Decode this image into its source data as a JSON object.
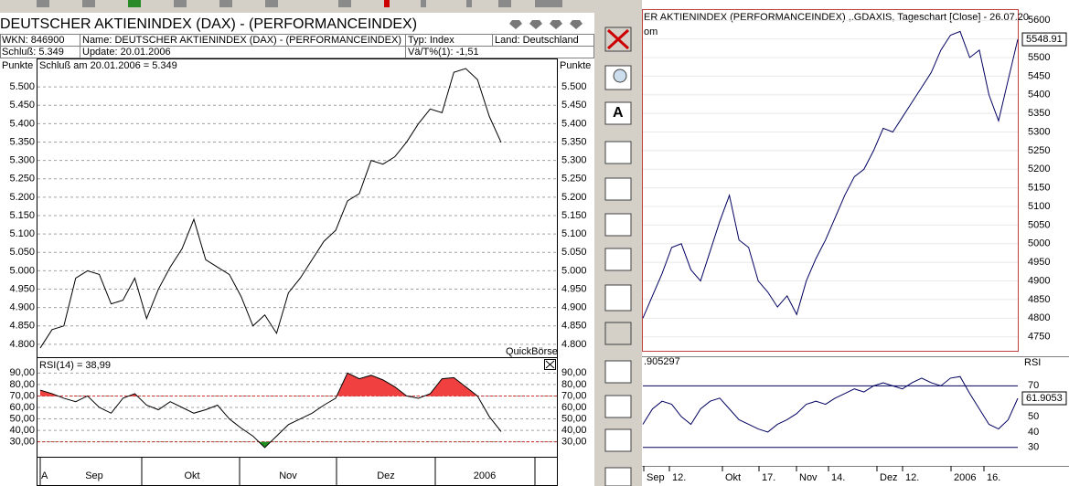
{
  "header": {
    "title": "DEUTSCHER AKTIENINDEX (DAX) - (PERFORMANCEINDEX)",
    "wkn": "WKN: 846900",
    "name": "Name: DEUTSCHER AKTIENINDEX (DAX) - (PERFORMANCEINDEX)",
    "typ": "Typ: Index",
    "land": "Land: Deutschland",
    "schluss": "Schluß: 5.349",
    "update": "Update: 20.01.2006",
    "change": "Vä/T%(1): -1,51"
  },
  "left_chart": {
    "type": "line",
    "axis_label": "Punkte",
    "caption": "Schluß am 20.01.2006 = 5.349",
    "brand": "QuickBörse",
    "color": "#000000",
    "ylim": [
      4765,
      5575
    ],
    "yticks": [
      {
        "value": 4800,
        "label": "4.800"
      },
      {
        "value": 4850,
        "label": "4.850"
      },
      {
        "value": 4900,
        "label": "4.900"
      },
      {
        "value": 4950,
        "label": "4.950"
      },
      {
        "value": 5000,
        "label": "5.000"
      },
      {
        "value": 5050,
        "label": "5.050"
      },
      {
        "value": 5100,
        "label": "5.100"
      },
      {
        "value": 5150,
        "label": "5.150"
      },
      {
        "value": 5200,
        "label": "5.200"
      },
      {
        "value": 5250,
        "label": "5.250"
      },
      {
        "value": 5300,
        "label": "5.300"
      },
      {
        "value": 5350,
        "label": "5.350"
      },
      {
        "value": 5400,
        "label": "5.400"
      },
      {
        "value": 5450,
        "label": "5.450"
      },
      {
        "value": 5500,
        "label": "5.500"
      }
    ],
    "values": [
      4790,
      4840,
      4850,
      4980,
      5000,
      4990,
      4910,
      4920,
      4980,
      4870,
      4950,
      5010,
      5060,
      5140,
      5030,
      5010,
      4990,
      4930,
      4850,
      4880,
      4830,
      4940,
      4980,
      5030,
      5080,
      5110,
      5190,
      5210,
      5300,
      5290,
      5310,
      5350,
      5400,
      5440,
      5430,
      5540,
      5550,
      5520,
      5420,
      5349
    ]
  },
  "left_rsi": {
    "type": "line",
    "caption": "RSI(14) = 38,99",
    "color": "#000000",
    "overbought": 70,
    "oversold": 30,
    "ylim": [
      17,
      103
    ],
    "yticks": [
      {
        "value": 30,
        "label": "30,00"
      },
      {
        "value": 40,
        "label": "40,00"
      },
      {
        "value": 50,
        "label": "50,00"
      },
      {
        "value": 60,
        "label": "60,00"
      },
      {
        "value": 70,
        "label": "70,00"
      },
      {
        "value": 80,
        "label": "80,00"
      },
      {
        "value": 90,
        "label": "90,00"
      }
    ],
    "values": [
      75,
      72,
      68,
      65,
      70,
      60,
      55,
      68,
      72,
      62,
      58,
      65,
      60,
      55,
      58,
      62,
      50,
      42,
      35,
      25,
      35,
      45,
      50,
      55,
      62,
      68,
      90,
      85,
      88,
      84,
      78,
      70,
      68,
      72,
      85,
      86,
      78,
      70,
      52,
      38.99
    ],
    "months": [
      "A",
      "Sep",
      "Okt",
      "Nov",
      "Dez",
      "2006"
    ]
  },
  "right_chart": {
    "type": "line",
    "title": "ER AKTIENINDEX (PERFORMANCEINDEX) ,.GDAXIS, Tageschart [Close] - 26.07.20",
    "subtitle": "om",
    "last_label": "5548.91",
    "color": "#000060",
    "ylim": [
      4710,
      5630
    ],
    "yticks": [
      4750,
      4800,
      4850,
      4900,
      4950,
      5000,
      5050,
      5100,
      5150,
      5200,
      5250,
      5300,
      5350,
      5400,
      5450,
      5500,
      5550,
      5600
    ],
    "values": [
      4800,
      4860,
      4920,
      4990,
      5000,
      4930,
      4900,
      4980,
      5060,
      5130,
      5010,
      4990,
      4900,
      4870,
      4830,
      4860,
      4810,
      4900,
      4960,
      5010,
      5070,
      5130,
      5180,
      5200,
      5250,
      5310,
      5300,
      5340,
      5380,
      5420,
      5460,
      5520,
      5560,
      5570,
      5500,
      5520,
      5400,
      5330,
      5440,
      5548.91
    ]
  },
  "right_rsi": {
    "type": "line",
    "axis_label": "RSI",
    "caption": ".905297",
    "last_label": "61.9053",
    "color": "#000060",
    "overbought": 70,
    "oversold": 30,
    "ylim": [
      18,
      88
    ],
    "yticks": [
      30,
      40,
      50,
      60,
      70
    ],
    "values": [
      45,
      55,
      60,
      58,
      50,
      45,
      55,
      60,
      62,
      55,
      48,
      45,
      42,
      40,
      45,
      48,
      52,
      58,
      60,
      58,
      62,
      65,
      68,
      66,
      70,
      72,
      70,
      68,
      72,
      75,
      72,
      70,
      75,
      76,
      65,
      55,
      45,
      42,
      48,
      61.9053
    ],
    "dates": [
      "Sep",
      "12.",
      "Okt",
      "17.",
      "Nov",
      "14.",
      "Dez",
      "12.",
      "2006",
      "16."
    ]
  }
}
